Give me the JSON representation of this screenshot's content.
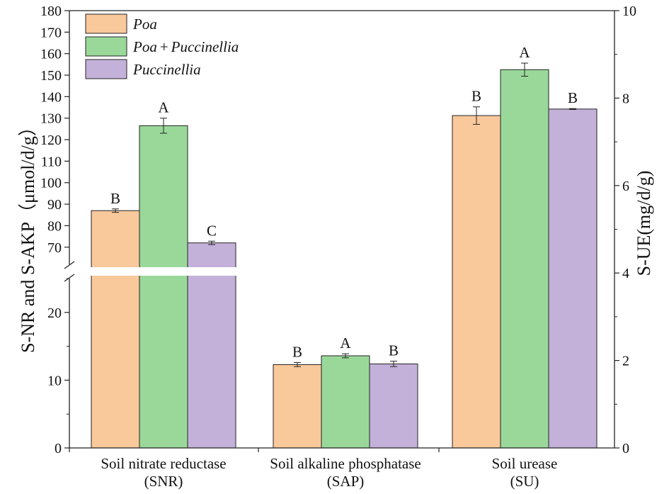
{
  "chart_data": {
    "type": "bar",
    "title": "",
    "categories": [
      {
        "line1": "Soil nitrate reductase",
        "line2": "(SNR)",
        "axis": "left"
      },
      {
        "line1": "Soil alkaline phosphatase",
        "line2": "(SAP)",
        "axis": "left"
      },
      {
        "line1": "Soil urease",
        "line2": "(SU)",
        "axis": "right"
      }
    ],
    "series": [
      {
        "name": "Poa",
        "color": "#F9C89B",
        "values": [
          87,
          12.3,
          7.6
        ],
        "errors": [
          0.8,
          0.3,
          0.2
        ],
        "letters": [
          "B",
          "B",
          "B"
        ]
      },
      {
        "name": "Poa+Puccinellia",
        "color": "#9AD89A",
        "values": [
          126.5,
          13.6,
          8.65
        ],
        "errors": [
          3.5,
          0.3,
          0.15
        ],
        "letters": [
          "A",
          "A",
          "A"
        ]
      },
      {
        "name": "Puccinellia",
        "color": "#C3B1D9",
        "values": [
          72,
          12.4,
          7.75
        ],
        "errors": [
          0.8,
          0.4,
          0.01
        ],
        "letters": [
          "C",
          "B",
          "B"
        ]
      }
    ],
    "legend": {
      "position": "top-left",
      "entries": [
        {
          "parts": [
            "Poa"
          ]
        },
        {
          "parts": [
            "Poa",
            "+",
            "Puccinellia"
          ]
        },
        {
          "parts": [
            "Puccinellia"
          ]
        }
      ]
    },
    "left_axis": {
      "label": "S-NR and S-AKP（μmol/d/g）",
      "broken": true,
      "lower_range": [
        0,
        25
      ],
      "lower_ticks": [
        0,
        10,
        20
      ],
      "upper_range": [
        63,
        180
      ],
      "upper_ticks": [
        70,
        80,
        90,
        100,
        110,
        120,
        130,
        140,
        150,
        160,
        170,
        180
      ]
    },
    "right_axis": {
      "label": "S-UE(mg/d/g)",
      "range": [
        0,
        10
      ],
      "ticks": [
        0,
        2,
        4,
        6,
        8,
        10
      ]
    }
  }
}
